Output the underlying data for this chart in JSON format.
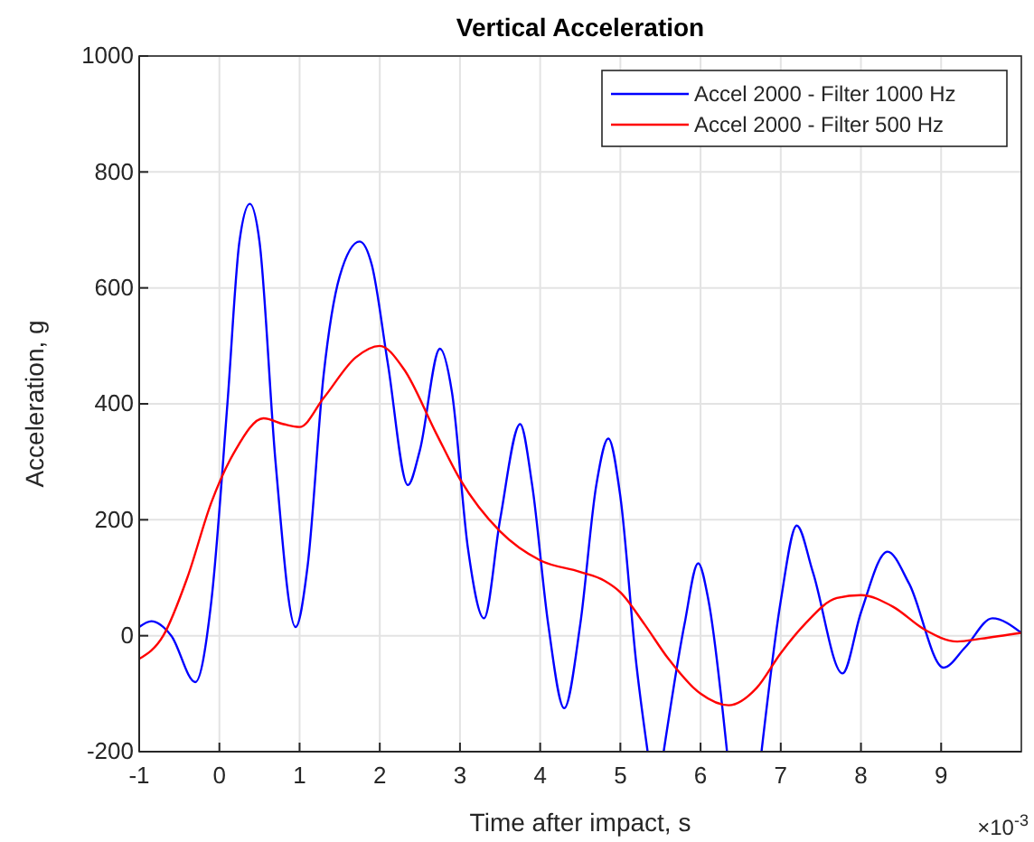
{
  "chart_data": {
    "type": "line",
    "title": "Vertical Acceleration",
    "xlabel": "Time after impact, s",
    "ylabel": "Acceleration, g",
    "annotations": [
      "×10$^{-3}$"
    ],
    "xlim": [
      -1,
      10
    ],
    "ylim": [
      -200,
      1000
    ],
    "xticks": [
      -1,
      0,
      1,
      2,
      3,
      4,
      5,
      6,
      7,
      8,
      9
    ],
    "yticks": [
      -200,
      0,
      200,
      400,
      600,
      800,
      1000
    ],
    "grid": true,
    "legend": "top right",
    "series": [
      {
        "name": "Accel 2000 - Filter 1000 Hz",
        "color": "#0000ff",
        "x": [
          -1,
          -0.85,
          -0.6,
          -0.3,
          -0.1,
          0.1,
          0.25,
          0.38,
          0.5,
          0.7,
          0.95,
          1.1,
          1.3,
          1.5,
          1.75,
          1.9,
          2.1,
          2.35,
          2.5,
          2.75,
          2.9,
          3.1,
          3.3,
          3.5,
          3.75,
          3.9,
          4.1,
          4.3,
          4.5,
          4.7,
          4.85,
          5.0,
          5.2,
          5.34,
          5.4,
          5.54,
          5.8,
          5.97,
          6.1,
          6.33,
          6.5,
          6.76,
          7.0,
          7.2,
          7.4,
          7.77,
          8.0,
          8.33,
          8.6,
          9.03,
          9.3,
          9.64,
          10
        ],
        "values": [
          15,
          25,
          0,
          -80,
          60,
          400,
          680,
          745,
          680,
          300,
          15,
          120,
          450,
          620,
          680,
          640,
          470,
          260,
          320,
          495,
          420,
          150,
          30,
          200,
          365,
          260,
          20,
          -125,
          20,
          260,
          340,
          240,
          -50,
          -200,
          null,
          -200,
          20,
          125,
          60,
          -200,
          null,
          -200,
          60,
          190,
          110,
          -65,
          40,
          145,
          90,
          -55,
          -20,
          30,
          5
        ]
      },
      {
        "name": "Accel 2000 - Filter 500 Hz",
        "color": "#ff0000",
        "x": [
          -1,
          -0.7,
          -0.4,
          -0.1,
          0.2,
          0.55,
          0.8,
          1.0,
          1.3,
          1.7,
          2.0,
          2.3,
          2.7,
          3.0,
          3.5,
          4.0,
          4.5,
          4.8,
          5.0,
          5.3,
          5.6,
          6.0,
          6.35,
          6.7,
          7.0,
          7.3,
          7.7,
          8.0,
          8.4,
          8.8,
          9.2,
          9.5,
          10
        ],
        "values": [
          -40,
          0,
          100,
          230,
          320,
          375,
          365,
          360,
          410,
          480,
          500,
          460,
          350,
          270,
          180,
          130,
          110,
          95,
          75,
          20,
          -40,
          -100,
          -120,
          -90,
          -30,
          20,
          65,
          70,
          50,
          10,
          -10,
          -5,
          5
        ]
      }
    ]
  }
}
